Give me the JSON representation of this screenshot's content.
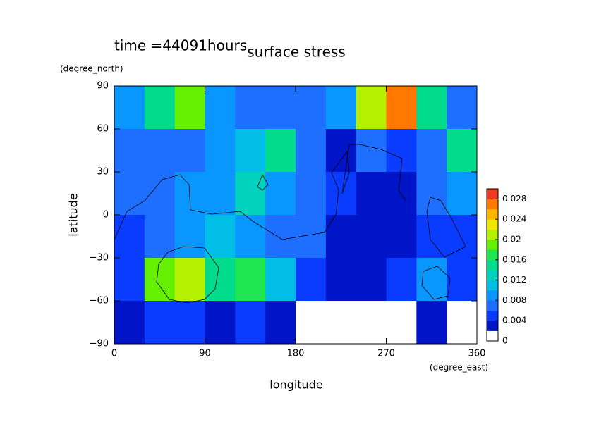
{
  "chart_data": {
    "type": "heatmap",
    "title": "surface stress",
    "subtitle": "time =44091hours",
    "x_label": "longitude",
    "x_unit": "(degree_east)",
    "y_label": "latitude",
    "y_unit": "(degree_north)",
    "xlim": [
      0,
      360
    ],
    "xticks": [
      0,
      90,
      180,
      270,
      360
    ],
    "ylim": [
      -90,
      90
    ],
    "yticks": [
      {
        "value": -90,
        "label": "−90"
      },
      {
        "value": -60,
        "label": "−60"
      },
      {
        "value": -30,
        "label": "−30"
      },
      0,
      30,
      60,
      90
    ],
    "x": [
      15,
      45,
      75,
      105,
      135,
      165,
      195,
      225,
      255,
      285,
      315,
      345
    ],
    "y": [
      75,
      45,
      15,
      -15,
      -45,
      -75
    ],
    "z": [
      [
        0.008,
        0.014,
        0.018,
        0.008,
        0.006,
        0.006,
        0.006,
        0.008,
        0.02,
        0.026,
        0.014,
        0.006
      ],
      [
        0.006,
        0.006,
        0.006,
        0.008,
        0.01,
        0.014,
        0.006,
        0.002,
        0.006,
        0.004,
        0.006,
        0.014
      ],
      [
        0.006,
        0.006,
        0.008,
        0.008,
        0.012,
        0.008,
        0.006,
        0.004,
        0.002,
        0.002,
        0.006,
        0.008
      ],
      [
        0.004,
        0.006,
        0.008,
        0.01,
        0.008,
        0.006,
        0.006,
        0.002,
        0.002,
        0.002,
        0.004,
        0.004
      ],
      [
        0.004,
        0.018,
        0.02,
        0.014,
        0.016,
        0.01,
        0.004,
        0.002,
        0.002,
        0.004,
        0.008,
        0.004
      ],
      [
        0.002,
        0.004,
        0.004,
        0.002,
        0.004,
        0.002,
        0,
        0,
        0,
        0,
        0.002,
        0
      ]
    ],
    "clim": [
      0,
      0.03
    ],
    "colorbar_ticks": [
      0,
      0.004,
      0.008,
      0.012,
      0.016,
      0.02,
      0.024,
      0.028
    ],
    "colors": [
      "#ffffff",
      "#0014c8",
      "#0a3cff",
      "#1e6eff",
      "#0a96ff",
      "#00bee6",
      "#00d2be",
      "#00dc8c",
      "#1ee650",
      "#64f000",
      "#b4f000",
      "#f0e600",
      "#ffb400",
      "#ff7800",
      "#f03c1e"
    ]
  }
}
